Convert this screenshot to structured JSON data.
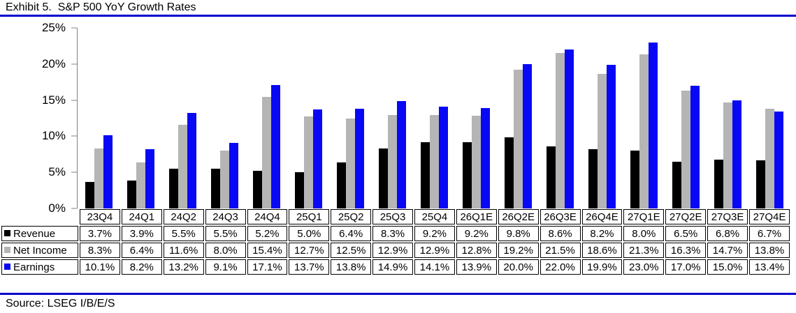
{
  "title": "Exhibit 5.  S&P 500 YoY Growth Rates",
  "source": "Source: LSEG I/B/E/S",
  "colors": {
    "revenue_black": "#000000",
    "net_income_gray": "#b5b5b5",
    "earnings_blue": "#0808f5",
    "rule_blue": "#0000cc",
    "axis_gray": "#808080",
    "table_border": "#000000"
  },
  "y_axis": {
    "tick_labels": [
      "25%",
      "20%",
      "15%",
      "10%",
      "5%",
      "0%"
    ],
    "max": 25
  },
  "chart_data": {
    "type": "bar",
    "title": "S&P 500 YoY Growth Rates",
    "xlabel": "",
    "ylabel": "",
    "ylim": [
      0,
      25
    ],
    "grid": false,
    "legend_position": "table-left",
    "categories": [
      "23Q4",
      "24Q1",
      "24Q2",
      "24Q3",
      "24Q4",
      "25Q1",
      "25Q2",
      "25Q3",
      "25Q4",
      "26Q1E",
      "26Q2E",
      "26Q3E",
      "26Q4E",
      "27Q1E",
      "27Q2E",
      "27Q3E",
      "27Q4E"
    ],
    "series": [
      {
        "key": "revenue",
        "name": "Revenue",
        "color": "#000000",
        "values": [
          3.7,
          3.9,
          5.5,
          5.5,
          5.2,
          5.0,
          6.4,
          8.3,
          9.2,
          9.2,
          9.8,
          8.6,
          8.2,
          8.0,
          6.5,
          6.8,
          6.7
        ]
      },
      {
        "key": "net-income",
        "name": "Net Income",
        "color": "#b5b5b5",
        "values": [
          8.3,
          6.4,
          11.6,
          8.0,
          15.4,
          12.7,
          12.5,
          12.9,
          12.9,
          12.8,
          19.2,
          21.5,
          18.6,
          21.3,
          16.3,
          14.7,
          13.8
        ]
      },
      {
        "key": "earnings",
        "name": "Earnings",
        "color": "#0808f5",
        "values": [
          10.1,
          8.2,
          13.2,
          9.1,
          17.1,
          13.7,
          13.8,
          14.9,
          14.1,
          13.9,
          20.0,
          22.0,
          19.9,
          23.0,
          17.0,
          15.0,
          13.4
        ]
      }
    ]
  },
  "table": {
    "rows": [
      {
        "label": "Revenue",
        "values": [
          "3.7%",
          "3.9%",
          "5.5%",
          "5.5%",
          "5.2%",
          "5.0%",
          "6.4%",
          "8.3%",
          "9.2%",
          "9.2%",
          "9.8%",
          "8.6%",
          "8.2%",
          "8.0%",
          "6.5%",
          "6.8%",
          "6.7%"
        ]
      },
      {
        "label": "Net Income",
        "values": [
          "8.3%",
          "6.4%",
          "11.6%",
          "8.0%",
          "15.4%",
          "12.7%",
          "12.5%",
          "12.9%",
          "12.9%",
          "12.8%",
          "19.2%",
          "21.5%",
          "18.6%",
          "21.3%",
          "16.3%",
          "14.7%",
          "13.8%"
        ]
      },
      {
        "label": "Earnings",
        "values": [
          "10.1%",
          "8.2%",
          "13.2%",
          "9.1%",
          "17.1%",
          "13.7%",
          "13.8%",
          "14.9%",
          "14.1%",
          "13.9%",
          "20.0%",
          "22.0%",
          "19.9%",
          "23.0%",
          "17.0%",
          "15.0%",
          "13.4%"
        ]
      }
    ]
  }
}
